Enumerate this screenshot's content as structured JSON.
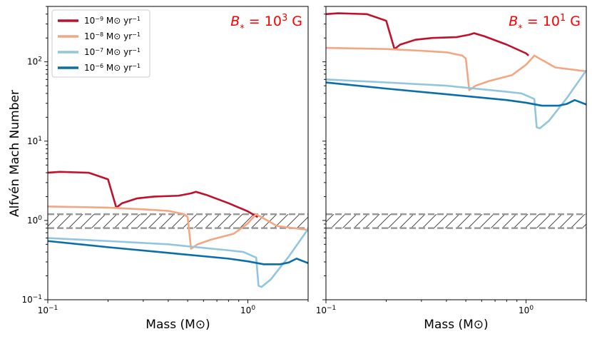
{
  "chart_data": {
    "type": "line",
    "xscale": "log",
    "yscale": "log",
    "xlim": [
      0.1,
      2.0
    ],
    "ylim": [
      0.1,
      500
    ],
    "ylabel": "Alfvén Mach Number",
    "band": {
      "lower": 0.8,
      "upper": 1.2,
      "color": "#999999"
    },
    "x_ticks": [
      {
        "value": 0.1,
        "label": "10",
        "exp": "−1"
      },
      {
        "value": 1.0,
        "label": "10",
        "exp": "0"
      }
    ],
    "y_ticks": [
      {
        "value": 0.1,
        "label": "10",
        "exp": "−1"
      },
      {
        "value": 1.0,
        "label": "10",
        "exp": "0"
      },
      {
        "value": 10,
        "label": "10",
        "exp": "1"
      },
      {
        "value": 100,
        "label": "10",
        "exp": "2"
      }
    ],
    "legend": [
      {
        "base": "10",
        "exp": "−9",
        "unit": " M⊙ yr",
        "unit_exp": "−1",
        "color": "#c0102c"
      },
      {
        "base": "10",
        "exp": "−8",
        "unit": " M⊙ yr",
        "unit_exp": "−1",
        "color": "#f4a582"
      },
      {
        "base": "10",
        "exp": "−7",
        "unit": " M⊙ yr",
        "unit_exp": "−1",
        "color": "#92c5de"
      },
      {
        "base": "10",
        "exp": "−6",
        "unit": " M⊙ yr",
        "unit_exp": "−1",
        "color": "#0a6ea8"
      }
    ],
    "panels": [
      {
        "xlabel": "Mass (M⊙)",
        "annotation": {
          "prefix": "B",
          "sub": "*",
          "eq": " = 10",
          "exp": "3",
          "suffix": " G",
          "color": "#ff0000"
        },
        "series": [
          {
            "name": "1e-9",
            "color": "#c0102c",
            "x": [
              0.1,
              0.115,
              0.16,
              0.2,
              0.22,
              0.235,
              0.28,
              0.34,
              0.45,
              0.52,
              0.55,
              0.62,
              0.8,
              1.0,
              1.12
            ],
            "y": [
              4.0,
              4.1,
              4.0,
              3.3,
              1.45,
              1.65,
              1.9,
              2.0,
              2.05,
              2.2,
              2.3,
              2.1,
              1.65,
              1.3,
              1.1
            ]
          },
          {
            "name": "1e-8",
            "color": "#f4a582",
            "x": [
              0.1,
              0.2,
              0.3,
              0.4,
              0.48,
              0.5,
              0.52,
              0.56,
              0.65,
              0.85,
              1.0,
              1.1,
              1.4,
              2.0
            ],
            "y": [
              1.5,
              1.45,
              1.38,
              1.32,
              1.2,
              1.1,
              0.44,
              0.5,
              0.57,
              0.68,
              0.92,
              1.2,
              0.85,
              0.76
            ]
          },
          {
            "name": "1e-7",
            "color": "#92c5de",
            "x": [
              0.1,
              0.2,
              0.4,
              0.8,
              0.95,
              1.1,
              1.13,
              1.17,
              1.3,
              1.6,
              2.0
            ],
            "y": [
              0.6,
              0.55,
              0.5,
              0.42,
              0.4,
              0.34,
              0.15,
              0.145,
              0.18,
              0.35,
              0.78
            ]
          },
          {
            "name": "1e-6",
            "color": "#0a6ea8",
            "x": [
              0.1,
              0.2,
              0.4,
              0.8,
              1.0,
              1.2,
              1.45,
              1.6,
              1.75,
              2.0
            ],
            "y": [
              0.55,
              0.46,
              0.39,
              0.33,
              0.305,
              0.28,
              0.28,
              0.295,
              0.33,
              0.29
            ]
          }
        ]
      },
      {
        "xlabel": "Mass (M⊙)",
        "annotation": {
          "prefix": "B",
          "sub": "*",
          "eq": " = 10",
          "exp": "1",
          "suffix": " G",
          "color": "#ff0000"
        },
        "series": [
          {
            "name": "1e-9",
            "color": "#c0102c",
            "x": [
              0.1,
              0.115,
              0.16,
              0.2,
              0.22,
              0.235,
              0.28,
              0.34,
              0.45,
              0.52,
              0.55,
              0.62,
              0.8,
              1.0,
              1.03
            ],
            "y": [
              400,
              410,
              400,
              330,
              145,
              165,
              190,
              200,
              205,
              220,
              230,
              210,
              165,
              128,
              120
            ]
          },
          {
            "name": "1e-8",
            "color": "#f4a582",
            "x": [
              0.1,
              0.2,
              0.3,
              0.4,
              0.48,
              0.5,
              0.52,
              0.56,
              0.65,
              0.85,
              1.0,
              1.1,
              1.4,
              2.0
            ],
            "y": [
              150,
              145,
              138,
              132,
              120,
              110,
              44,
              50,
              57,
              68,
              92,
              120,
              85,
              76
            ]
          },
          {
            "name": "1e-7",
            "color": "#92c5de",
            "x": [
              0.1,
              0.2,
              0.4,
              0.8,
              0.95,
              1.1,
              1.13,
              1.17,
              1.3,
              1.6,
              2.0
            ],
            "y": [
              60,
              55,
              50,
              42,
              40,
              34,
              15,
              14.5,
              18,
              35,
              78
            ]
          },
          {
            "name": "1e-6",
            "color": "#0a6ea8",
            "x": [
              0.1,
              0.2,
              0.4,
              0.8,
              1.0,
              1.2,
              1.45,
              1.6,
              1.75,
              2.0
            ],
            "y": [
              55,
              46,
              39,
              33,
              30.5,
              28,
              28,
              29.5,
              33,
              29
            ]
          }
        ]
      }
    ]
  }
}
